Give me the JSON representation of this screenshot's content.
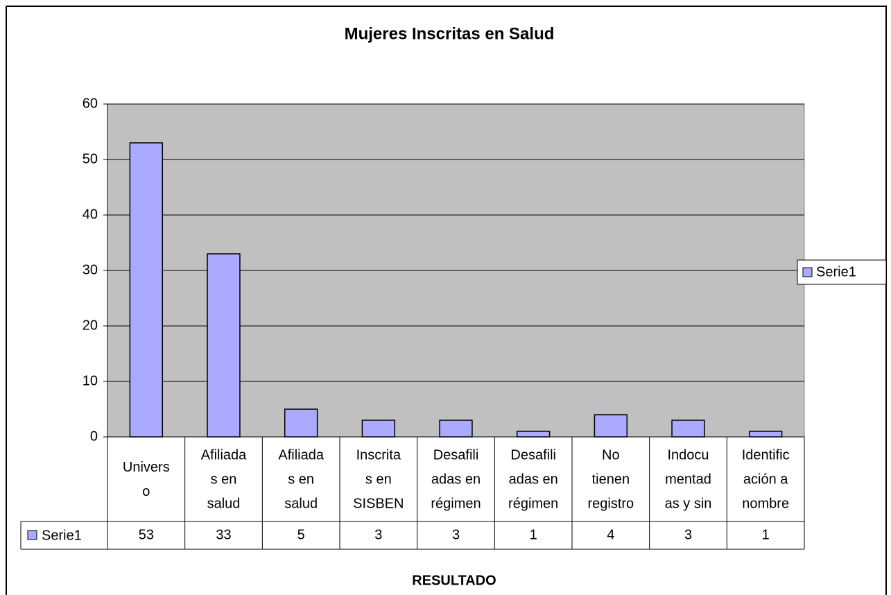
{
  "chart_data": {
    "type": "bar",
    "title": "Mujeres Inscritas en Salud",
    "x_label": "RESULTADO",
    "categories": [
      [
        "Univers",
        "o"
      ],
      [
        "Afiliada",
        "s en",
        "salud"
      ],
      [
        "Afiliada",
        "s en",
        "salud"
      ],
      [
        "Inscrita",
        "s en",
        "SISBEN"
      ],
      [
        "Desafili",
        "adas en",
        "régimen"
      ],
      [
        "Desafili",
        "adas en",
        "régimen"
      ],
      [
        "No",
        "tienen",
        "registro"
      ],
      [
        "Indocu",
        "mentad",
        "as y sin"
      ],
      [
        "Identific",
        "ación a",
        "nombre"
      ]
    ],
    "series": [
      {
        "name": "Serie1",
        "color": "#aaaaff",
        "values": [
          53,
          33,
          5,
          3,
          3,
          1,
          4,
          3,
          1
        ]
      }
    ],
    "ylim": [
      0,
      60
    ],
    "yticks": [
      0,
      10,
      20,
      30,
      40,
      50,
      60
    ],
    "grid": true,
    "legend": "right",
    "data_table": true
  }
}
